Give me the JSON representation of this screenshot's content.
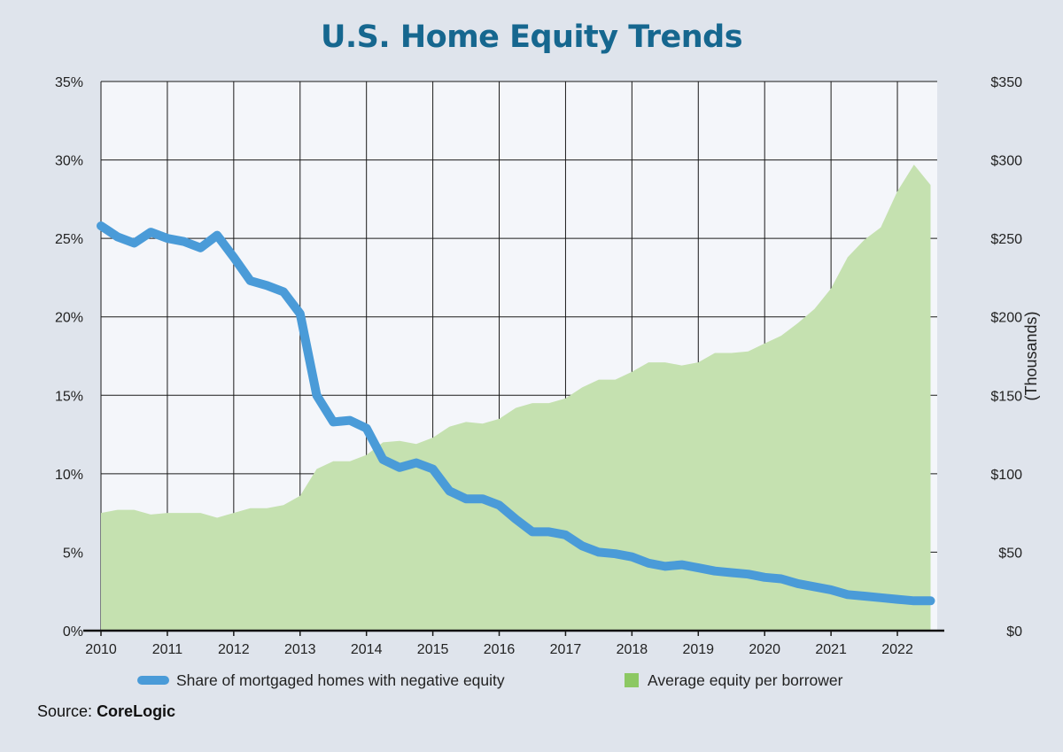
{
  "chart_data": {
    "type": "line+area",
    "title": "U.S. Home Equity Trends",
    "y2label": "(Thousands)",
    "x_ticks": [
      "2010",
      "2011",
      "2012",
      "2013",
      "2014",
      "2015",
      "2016",
      "2017",
      "2018",
      "2019",
      "2020",
      "2021",
      "2022"
    ],
    "xlim": [
      2010.0,
      2022.6
    ],
    "y_left": {
      "ticks": [
        "0%",
        "5%",
        "10%",
        "15%",
        "20%",
        "25%",
        "30%",
        "35%"
      ],
      "ylim": [
        0,
        35
      ]
    },
    "y_right": {
      "ticks": [
        "$0",
        "$50",
        "$100",
        "$150",
        "$200",
        "$250",
        "$300",
        "$350"
      ],
      "ylim": [
        0,
        350
      ]
    },
    "series": [
      {
        "name": "Share of mortgaged homes with negative equity",
        "kind": "line",
        "axis": "left",
        "color": "#4a9bd8",
        "x": [
          2010.0,
          2010.25,
          2010.5,
          2010.75,
          2011.0,
          2011.25,
          2011.5,
          2011.75,
          2012.0,
          2012.25,
          2012.5,
          2012.75,
          2013.0,
          2013.25,
          2013.5,
          2013.75,
          2014.0,
          2014.25,
          2014.5,
          2014.75,
          2015.0,
          2015.25,
          2015.5,
          2015.75,
          2016.0,
          2016.25,
          2016.5,
          2016.75,
          2017.0,
          2017.25,
          2017.5,
          2017.75,
          2018.0,
          2018.25,
          2018.5,
          2018.75,
          2019.0,
          2019.25,
          2019.5,
          2019.75,
          2020.0,
          2020.25,
          2020.5,
          2020.75,
          2021.0,
          2021.25,
          2021.5,
          2021.75,
          2022.0,
          2022.25,
          2022.5
        ],
        "y": [
          25.8,
          25.1,
          24.7,
          25.4,
          25.0,
          24.8,
          24.4,
          25.2,
          23.8,
          22.3,
          22.0,
          21.6,
          20.2,
          15.0,
          13.3,
          13.4,
          12.9,
          10.9,
          10.4,
          10.7,
          10.3,
          8.9,
          8.4,
          8.4,
          8.0,
          7.1,
          6.3,
          6.3,
          6.1,
          5.4,
          5.0,
          4.9,
          4.7,
          4.3,
          4.1,
          4.2,
          4.0,
          3.8,
          3.7,
          3.6,
          3.4,
          3.3,
          3.0,
          2.8,
          2.6,
          2.3,
          2.2,
          2.1,
          2.0,
          1.9,
          1.9
        ]
      },
      {
        "name": "Average equity per borrower",
        "kind": "area",
        "axis": "right",
        "color": "#c5e1b0",
        "legend_color": "#8cc863",
        "x": [
          2010.0,
          2010.25,
          2010.5,
          2010.75,
          2011.0,
          2011.25,
          2011.5,
          2011.75,
          2012.0,
          2012.25,
          2012.5,
          2012.75,
          2013.0,
          2013.25,
          2013.5,
          2013.75,
          2014.0,
          2014.25,
          2014.5,
          2014.75,
          2015.0,
          2015.25,
          2015.5,
          2015.75,
          2016.0,
          2016.25,
          2016.5,
          2016.75,
          2017.0,
          2017.25,
          2017.5,
          2017.75,
          2018.0,
          2018.25,
          2018.5,
          2018.75,
          2019.0,
          2019.25,
          2019.5,
          2019.75,
          2020.0,
          2020.25,
          2020.5,
          2020.75,
          2021.0,
          2021.25,
          2021.5,
          2021.75,
          2022.0,
          2022.25,
          2022.5
        ],
        "y": [
          75,
          77,
          77,
          74,
          75,
          75,
          75,
          72,
          75,
          78,
          78,
          80,
          86,
          103,
          108,
          108,
          112,
          120,
          121,
          119,
          123,
          130,
          133,
          132,
          135,
          142,
          145,
          145,
          148,
          155,
          160,
          160,
          165,
          171,
          171,
          169,
          171,
          177,
          177,
          178,
          183,
          188,
          196,
          205,
          218,
          238,
          249,
          257,
          280,
          297,
          284
        ]
      }
    ],
    "legend_position": "bottom-center",
    "grid": true
  },
  "source": {
    "label": "Source:",
    "name": "CoreLogic"
  }
}
